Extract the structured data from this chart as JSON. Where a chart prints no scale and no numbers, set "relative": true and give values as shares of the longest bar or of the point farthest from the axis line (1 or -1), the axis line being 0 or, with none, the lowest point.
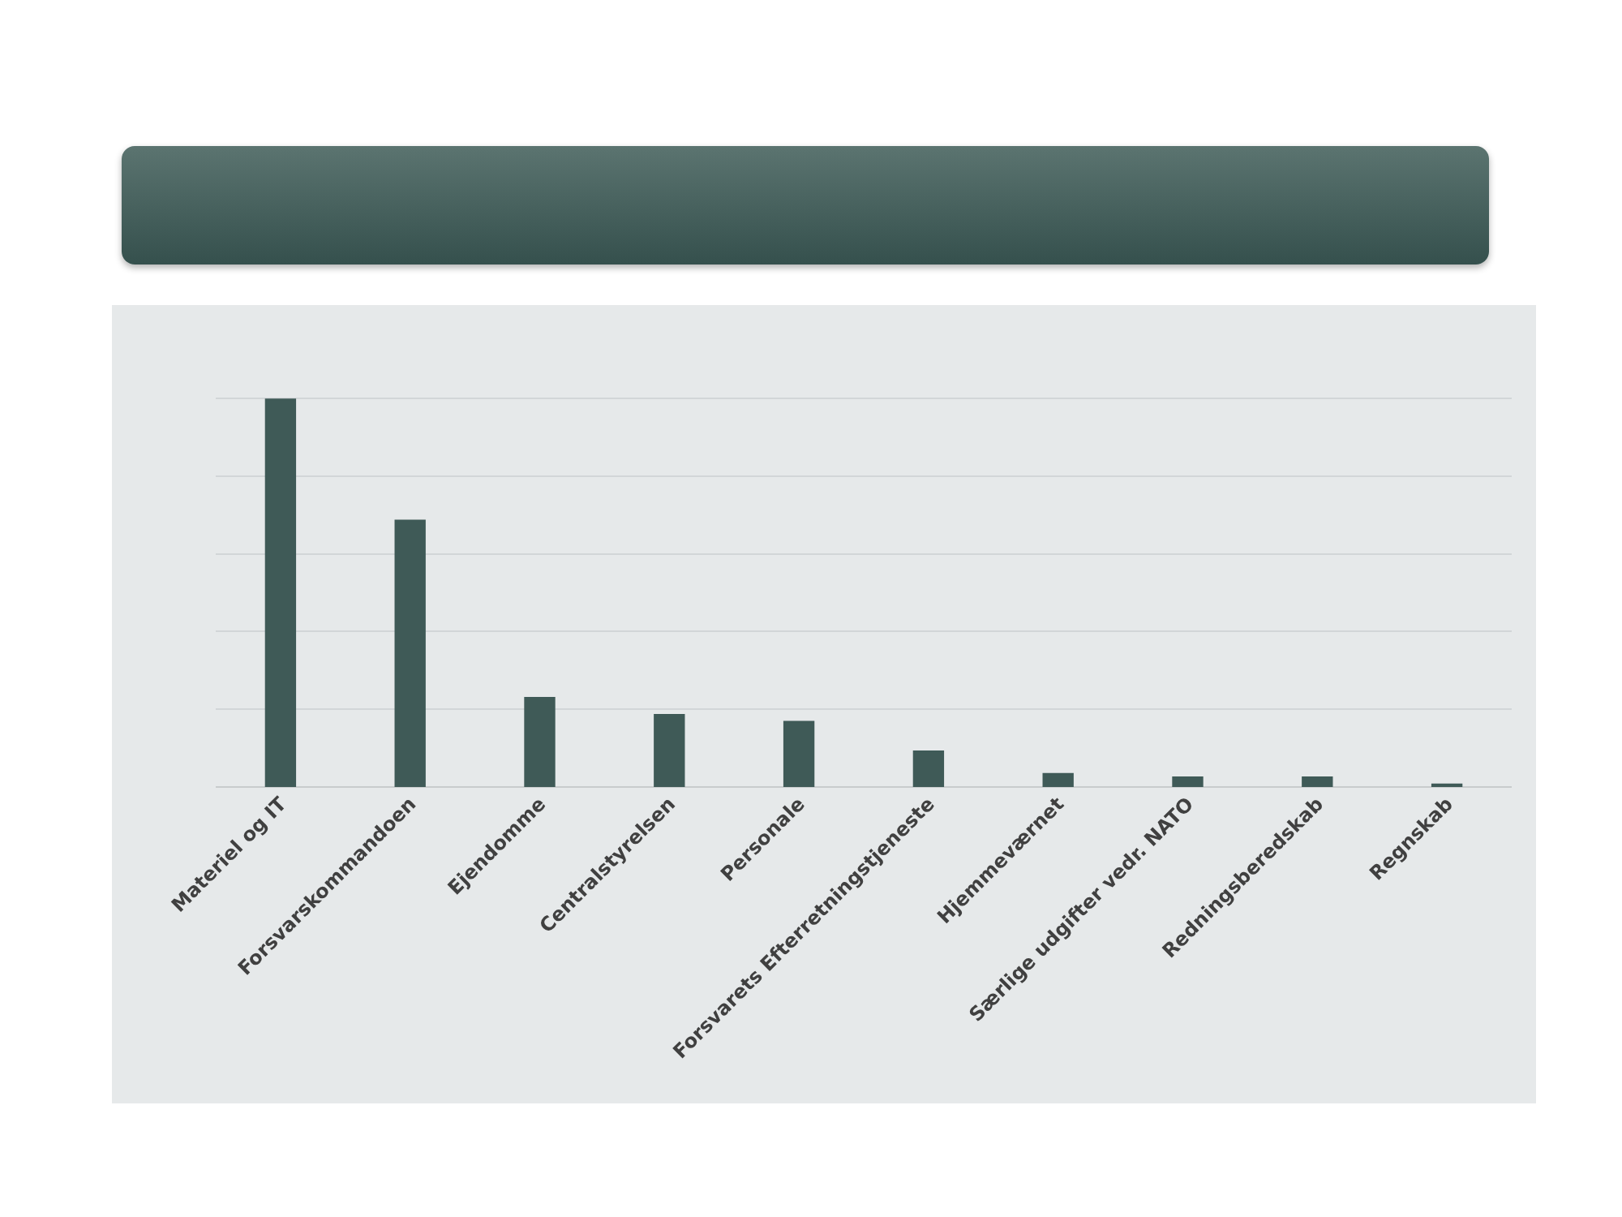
{
  "chart_data": {
    "type": "bar",
    "relative": true,
    "grid": true,
    "color": "#3f5a57",
    "categories": [
      "Materiel og IT",
      "Forsvarskommandoen",
      "Ejendomme",
      "Centralstyrelsen",
      "Personale",
      "Forsvarets Efterretningstjeneste",
      "Hjemmeværnet",
      "Særlige udgifter vedr. NATO",
      "Redningsberedskab",
      "Regnskab"
    ],
    "values": [
      1,
      0.688,
      0.232,
      0.188,
      0.17,
      0.094,
      0.036,
      0.027,
      0.027,
      0.009
    ]
  }
}
